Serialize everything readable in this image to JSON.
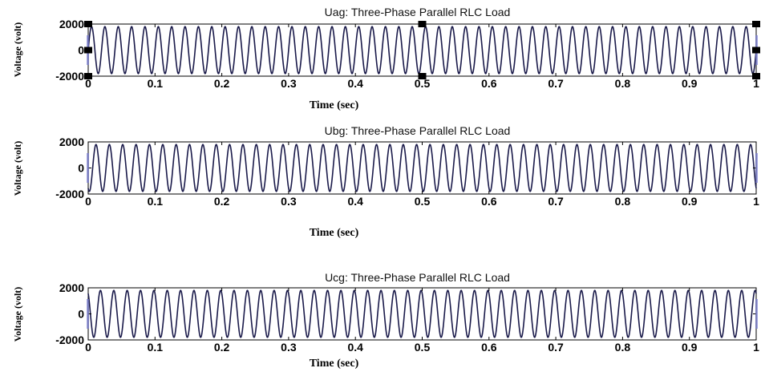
{
  "chart_data": [
    {
      "type": "line",
      "title": "Uag: Three-Phase Parallel RLC Load",
      "xlabel": "Time (sec)",
      "ylabel": "Voltage (volt)",
      "xlim": [
        0,
        1
      ],
      "ylim": [
        -2000,
        2000
      ],
      "x_ticks": [
        "0",
        "0.1",
        "0.2",
        "0.3",
        "0.4",
        "0.5",
        "0.6",
        "0.7",
        "0.8",
        "0.9",
        "1"
      ],
      "y_ticks": [
        "2000",
        "0",
        "-2000"
      ],
      "series": [
        {
          "amplitude": 1800,
          "frequency_hz": 50,
          "phase_deg": 0,
          "color": "#1a1a4a"
        }
      ],
      "selected": true
    },
    {
      "type": "line",
      "title": "Ubg: Three-Phase Parallel RLC Load",
      "xlabel": "Time (sec)",
      "ylabel": "Voltage (volt)",
      "xlim": [
        0,
        1
      ],
      "ylim": [
        -2000,
        2000
      ],
      "x_ticks": [
        "0",
        "0.1",
        "0.2",
        "0.3",
        "0.4",
        "0.5",
        "0.6",
        "0.7",
        "0.8",
        "0.9",
        "1"
      ],
      "y_ticks": [
        "2000",
        "0",
        "-2000"
      ],
      "series": [
        {
          "amplitude": 1800,
          "frequency_hz": 50,
          "phase_deg": -120,
          "color": "#1a1a4a"
        }
      ],
      "selected": false
    },
    {
      "type": "line",
      "title": "Ucg: Three-Phase Parallel RLC Load",
      "xlabel": "Time (sec)",
      "ylabel": "Voltage (volt)",
      "xlim": [
        0,
        1
      ],
      "ylim": [
        -2000,
        2000
      ],
      "x_ticks": [
        "0",
        "0.1",
        "0.2",
        "0.3",
        "0.4",
        "0.5",
        "0.6",
        "0.7",
        "0.8",
        "0.9",
        "1"
      ],
      "y_ticks": [
        "2000",
        "0",
        "-2000"
      ],
      "series": [
        {
          "amplitude": 1800,
          "frequency_hz": 50,
          "phase_deg": 120,
          "color": "#1a1a4a"
        }
      ],
      "selected": false
    }
  ]
}
